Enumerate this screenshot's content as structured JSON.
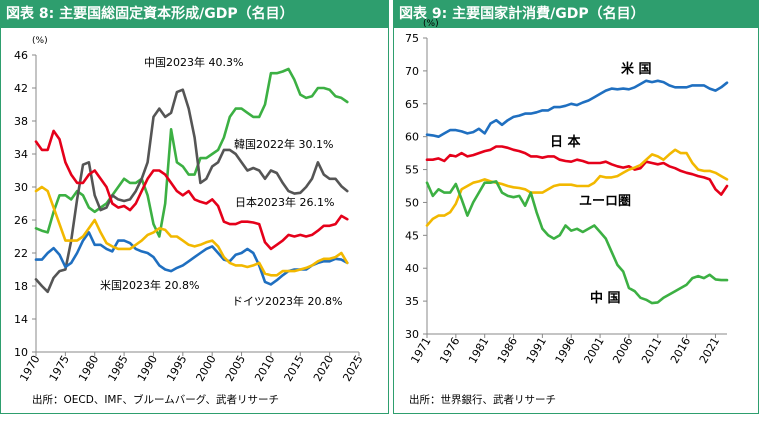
{
  "figures": [
    {
      "title": "図表 8: 主要国総固定資本形成/GDP（名目）",
      "source": "出所：OECD、IMF、ブルームバーグ、武者リサーチ"
    },
    {
      "title": "図表 9: 主要国家計消費/GDP（名目）",
      "source": "出所：世界銀行、武者リサーチ"
    }
  ],
  "chart_data": [
    {
      "type": "line",
      "title": "図表 8: 主要国総固定資本形成/GDP（名目）",
      "ylabel": "(%)",
      "ylim": [
        10,
        46
      ],
      "yticks": [
        10,
        14,
        18,
        22,
        26,
        30,
        34,
        38,
        42,
        46
      ],
      "xlim": [
        1970,
        2025
      ],
      "xticks": [
        1970,
        1975,
        1980,
        1985,
        1990,
        1995,
        2000,
        2005,
        2010,
        2015,
        2020,
        2025
      ],
      "grid": false,
      "annotations": [
        "中国2023年 40.3%",
        "韓国2022年 30.1%",
        "日本2023年 26.1%",
        "米国2023年 20.8%",
        "ドイツ2023年 20.8%"
      ],
      "series": [
        {
          "name": "中国",
          "color": "#3cb043",
          "x": [
            1970,
            1971,
            1972,
            1973,
            1974,
            1975,
            1976,
            1977,
            1978,
            1979,
            1980,
            1981,
            1982,
            1983,
            1984,
            1985,
            1986,
            1987,
            1988,
            1989,
            1990,
            1991,
            1992,
            1993,
            1994,
            1995,
            1996,
            1997,
            1998,
            1999,
            2000,
            2001,
            2002,
            2003,
            2004,
            2005,
            2006,
            2007,
            2008,
            2009,
            2010,
            2011,
            2012,
            2013,
            2014,
            2015,
            2016,
            2017,
            2018,
            2019,
            2020,
            2021,
            2022,
            2023
          ],
          "values": [
            25,
            24.7,
            24.5,
            27,
            29,
            29,
            28.5,
            29.5,
            29,
            27.5,
            27,
            27.5,
            28,
            29,
            30,
            31,
            30.5,
            30.5,
            31,
            29,
            25.5,
            24,
            28,
            37,
            33,
            32.5,
            31.5,
            31.5,
            33.5,
            33.5,
            34,
            34.5,
            36,
            38.5,
            39.5,
            39.5,
            39,
            38.5,
            38.5,
            40,
            43.8,
            43.8,
            44,
            44.3,
            43,
            41.2,
            40.8,
            41,
            42,
            42,
            41.8,
            41,
            40.8,
            40.3
          ]
        },
        {
          "name": "韓国",
          "color": "#555555",
          "x": [
            1970,
            1971,
            1972,
            1973,
            1974,
            1975,
            1976,
            1977,
            1978,
            1979,
            1980,
            1981,
            1982,
            1983,
            1984,
            1985,
            1986,
            1987,
            1988,
            1989,
            1990,
            1991,
            1992,
            1993,
            1994,
            1995,
            1996,
            1997,
            1998,
            1999,
            2000,
            2001,
            2002,
            2003,
            2004,
            2005,
            2006,
            2007,
            2008,
            2009,
            2010,
            2011,
            2012,
            2013,
            2014,
            2015,
            2016,
            2017,
            2018,
            2019,
            2020,
            2021,
            2022,
            2023
          ],
          "values": [
            18.8,
            18,
            17.3,
            19,
            19.8,
            20,
            23.5,
            28.5,
            32.7,
            33,
            29,
            27.2,
            27.5,
            29,
            28.5,
            28.3,
            28.5,
            29.5,
            31,
            33,
            38.5,
            39.5,
            38.5,
            39,
            41.5,
            41.8,
            39.5,
            36,
            30.5,
            31,
            32.5,
            33,
            34.5,
            34.5,
            34,
            33,
            32,
            32.3,
            32,
            31,
            32,
            31.7,
            30.5,
            29.5,
            29.2,
            29.3,
            30,
            31,
            33,
            31.5,
            31,
            31,
            30.1,
            29.5
          ]
        },
        {
          "name": "日本",
          "color": "#e5001a",
          "x": [
            1970,
            1971,
            1972,
            1973,
            1974,
            1975,
            1976,
            1977,
            1978,
            1979,
            1980,
            1981,
            1982,
            1983,
            1984,
            1985,
            1986,
            1987,
            1988,
            1989,
            1990,
            1991,
            1992,
            1993,
            1994,
            1995,
            1996,
            1997,
            1998,
            1999,
            2000,
            2001,
            2002,
            2003,
            2004,
            2005,
            2006,
            2007,
            2008,
            2009,
            2010,
            2011,
            2012,
            2013,
            2014,
            2015,
            2016,
            2017,
            2018,
            2019,
            2020,
            2021,
            2022,
            2023
          ],
          "values": [
            35.5,
            34.5,
            34.5,
            36.8,
            35.8,
            33,
            31.5,
            30.5,
            30.5,
            31.5,
            32,
            31,
            30,
            28,
            27.5,
            27.7,
            27.2,
            28,
            29.5,
            31,
            32,
            32,
            31.5,
            30.5,
            29.5,
            29,
            29.5,
            28.5,
            28.2,
            28,
            28.5,
            27.7,
            25.8,
            25.5,
            25.5,
            25.8,
            25.8,
            25.7,
            25.5,
            23.3,
            22.5,
            23,
            23.5,
            24.2,
            24,
            24.2,
            24,
            24.2,
            24.7,
            25.3,
            25.3,
            25.5,
            26.5,
            26.1
          ]
        },
        {
          "name": "米国",
          "color": "#1f6fc0",
          "x": [
            1970,
            1971,
            1972,
            1973,
            1974,
            1975,
            1976,
            1977,
            1978,
            1979,
            1980,
            1981,
            1982,
            1983,
            1984,
            1985,
            1986,
            1987,
            1988,
            1989,
            1990,
            1991,
            1992,
            1993,
            1994,
            1995,
            1996,
            1997,
            1998,
            1999,
            2000,
            2001,
            2002,
            2003,
            2004,
            2005,
            2006,
            2007,
            2008,
            2009,
            2010,
            2011,
            2012,
            2013,
            2014,
            2015,
            2016,
            2017,
            2018,
            2019,
            2020,
            2021,
            2022,
            2023
          ],
          "values": [
            21.2,
            21.2,
            22,
            22.6,
            21.8,
            20.3,
            20.8,
            22,
            23.5,
            24.5,
            23,
            23,
            22.5,
            22.2,
            23.5,
            23.5,
            23.2,
            22.5,
            22.2,
            22,
            21.5,
            20.5,
            20,
            19.8,
            20.2,
            20.5,
            21,
            21.5,
            22,
            22.5,
            22.8,
            22,
            21.2,
            21,
            21.8,
            22,
            22.5,
            22,
            20.5,
            18.5,
            18.2,
            18.7,
            19.3,
            19.8,
            20,
            20,
            20,
            20.5,
            20.8,
            21,
            21,
            21.3,
            21.2,
            20.8
          ]
        },
        {
          "name": "ドイツ",
          "color": "#f2b800",
          "x": [
            1970,
            1971,
            1972,
            1973,
            1974,
            1975,
            1976,
            1977,
            1978,
            1979,
            1980,
            1981,
            1982,
            1983,
            1984,
            1985,
            1986,
            1987,
            1988,
            1989,
            1990,
            1991,
            1992,
            1993,
            1994,
            1995,
            1996,
            1997,
            1998,
            1999,
            2000,
            2001,
            2002,
            2003,
            2004,
            2005,
            2006,
            2007,
            2008,
            2009,
            2010,
            2011,
            2012,
            2013,
            2014,
            2015,
            2016,
            2017,
            2018,
            2019,
            2020,
            2021,
            2022,
            2023
          ],
          "values": [
            29.5,
            30,
            29.5,
            27.5,
            25.5,
            23.5,
            23.5,
            23.5,
            24,
            25,
            26,
            24.5,
            23.2,
            22.8,
            22.5,
            22.5,
            22.5,
            23,
            23.5,
            24.2,
            24.5,
            25,
            24.8,
            24,
            24,
            23.5,
            23,
            22.8,
            23,
            23.3,
            23.5,
            22.8,
            21.5,
            20.8,
            20.5,
            20.5,
            20.3,
            20.5,
            20.8,
            19.5,
            19.3,
            19.3,
            19.8,
            19.8,
            19.8,
            20,
            20.2,
            20.5,
            21,
            21.3,
            21.3,
            21.5,
            22,
            20.8
          ]
        }
      ]
    },
    {
      "type": "line",
      "title": "図表 9: 主要国家計消費/GDP（名目）",
      "ylabel": "(%)",
      "ylim": [
        30,
        75
      ],
      "yticks": [
        30,
        35,
        40,
        45,
        50,
        55,
        60,
        65,
        70,
        75
      ],
      "xlim": [
        1971,
        2023
      ],
      "xticks": [
        1971,
        1976,
        1981,
        1986,
        1991,
        1996,
        2001,
        2006,
        2011,
        2016,
        2021
      ],
      "grid": false,
      "annotations": [
        "米 国",
        "日 本",
        "ユーロ圏",
        "中 国"
      ],
      "series": [
        {
          "name": "米 国",
          "color": "#1f6fc0",
          "x": [
            1971,
            1972,
            1973,
            1974,
            1975,
            1976,
            1977,
            1978,
            1979,
            1980,
            1981,
            1982,
            1983,
            1984,
            1985,
            1986,
            1987,
            1988,
            1989,
            1990,
            1991,
            1992,
            1993,
            1994,
            1995,
            1996,
            1997,
            1998,
            1999,
            2000,
            2001,
            2002,
            2003,
            2004,
            2005,
            2006,
            2007,
            2008,
            2009,
            2010,
            2011,
            2012,
            2013,
            2014,
            2015,
            2016,
            2017,
            2018,
            2019,
            2020,
            2021,
            2022,
            2023
          ],
          "values": [
            60.3,
            60.2,
            60,
            60.5,
            61,
            61,
            60.8,
            60.5,
            60.7,
            61.2,
            60.5,
            62,
            62.5,
            61.8,
            62.5,
            63,
            63.2,
            63.5,
            63.5,
            63.7,
            64,
            64,
            64.5,
            64.5,
            64.7,
            65,
            64.8,
            65.2,
            65.5,
            66,
            66.5,
            67,
            67.3,
            67.2,
            67.3,
            67.2,
            67.5,
            68,
            68.5,
            68.3,
            68.5,
            68.3,
            67.8,
            67.5,
            67.5,
            67.5,
            67.8,
            67.8,
            67.8,
            67.3,
            67,
            67.5,
            68.2
          ]
        },
        {
          "name": "日 本",
          "color": "#e5001a",
          "x": [
            1971,
            1972,
            1973,
            1974,
            1975,
            1976,
            1977,
            1978,
            1979,
            1980,
            1981,
            1982,
            1983,
            1984,
            1985,
            1986,
            1987,
            1988,
            1989,
            1990,
            1991,
            1992,
            1993,
            1994,
            1995,
            1996,
            1997,
            1998,
            1999,
            2000,
            2001,
            2002,
            2003,
            2004,
            2005,
            2006,
            2007,
            2008,
            2009,
            2010,
            2011,
            2012,
            2013,
            2014,
            2015,
            2016,
            2017,
            2018,
            2019,
            2020,
            2021,
            2022,
            2023
          ],
          "values": [
            56.5,
            56.5,
            56.7,
            56.3,
            57.2,
            57,
            57.5,
            57,
            57.2,
            57.5,
            57.8,
            58,
            58.5,
            58.5,
            58.3,
            58,
            57.8,
            57.5,
            57,
            57,
            56.8,
            57,
            57,
            56.5,
            56.3,
            56.2,
            56.5,
            56.3,
            56,
            56,
            56,
            56.2,
            55.8,
            55.5,
            55.3,
            55.5,
            55,
            55.2,
            56.2,
            56,
            55.8,
            56,
            55.5,
            55.2,
            54.8,
            54.5,
            54.3,
            54,
            53.8,
            53.5,
            52,
            51.2,
            52.5
          ]
        },
        {
          "name": "ユーロ圏",
          "color": "#f2b800",
          "x": [
            1971,
            1972,
            1973,
            1974,
            1975,
            1976,
            1977,
            1978,
            1979,
            1980,
            1981,
            1982,
            1983,
            1984,
            1985,
            1986,
            1987,
            1988,
            1989,
            1990,
            1991,
            1992,
            1993,
            1994,
            1995,
            1996,
            1997,
            1998,
            1999,
            2000,
            2001,
            2002,
            2003,
            2004,
            2005,
            2006,
            2007,
            2008,
            2009,
            2010,
            2011,
            2012,
            2013,
            2014,
            2015,
            2016,
            2017,
            2018,
            2019,
            2020,
            2021,
            2022,
            2023
          ],
          "values": [
            46.5,
            47.5,
            48,
            48,
            48.5,
            49.8,
            52,
            52.5,
            53,
            53.2,
            53.5,
            53.2,
            53,
            52.8,
            52.5,
            52.3,
            52.2,
            52,
            51.5,
            51.5,
            51.5,
            52,
            52.5,
            52.7,
            52.7,
            52.7,
            52.5,
            52.5,
            52.5,
            53,
            54,
            53.8,
            53.8,
            54,
            54.5,
            55,
            55.3,
            55.7,
            56.5,
            57.3,
            57,
            56.5,
            57.3,
            58,
            57.5,
            57.5,
            56,
            55,
            54.8,
            54.8,
            54.5,
            54,
            53.5
          ]
        },
        {
          "name": "中 国",
          "color": "#3cb043",
          "x": [
            1971,
            1972,
            1973,
            1974,
            1975,
            1976,
            1977,
            1978,
            1979,
            1980,
            1981,
            1982,
            1983,
            1984,
            1985,
            1986,
            1987,
            1988,
            1989,
            1990,
            1991,
            1992,
            1993,
            1994,
            1995,
            1996,
            1997,
            1998,
            1999,
            2000,
            2001,
            2002,
            2003,
            2004,
            2005,
            2006,
            2007,
            2008,
            2009,
            2010,
            2011,
            2012,
            2013,
            2014,
            2015,
            2016,
            2017,
            2018,
            2019,
            2020,
            2021,
            2022,
            2023
          ],
          "values": [
            53,
            51,
            52,
            51.5,
            51.5,
            52.8,
            50.5,
            48,
            50,
            51.5,
            53,
            53,
            53.2,
            51.5,
            51,
            50.8,
            51,
            49.5,
            51.5,
            48.5,
            46,
            45,
            44.5,
            45,
            46.5,
            45.7,
            46,
            45.5,
            46,
            46.5,
            45.5,
            44.5,
            42.5,
            40.5,
            39.5,
            37,
            36.5,
            35.5,
            35.2,
            34.7,
            34.8,
            35.5,
            36,
            36.5,
            37,
            37.5,
            38.5,
            38.8,
            38.5,
            39,
            38.3,
            38.2,
            38.2
          ]
        }
      ]
    }
  ]
}
